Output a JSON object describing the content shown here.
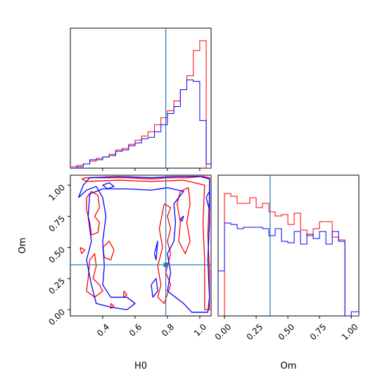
{
  "colors": {
    "red": "#ff0000",
    "blue": "#0000ff",
    "truth": "#1f77b4"
  },
  "chart_data": {
    "type": "corner",
    "parameters": [
      "H0",
      "Om"
    ],
    "truth": {
      "H0": 0.79,
      "Om": 0.36
    },
    "histograms": [
      {
        "parameter": "H0",
        "xlim": [
          0.2,
          1.07
        ],
        "ylim": [
          0,
          1.0
        ],
        "bin_edges": [
          0.2,
          0.24,
          0.28,
          0.32,
          0.36,
          0.4,
          0.44,
          0.48,
          0.52,
          0.56,
          0.6,
          0.64,
          0.68,
          0.72,
          0.76,
          0.8,
          0.84,
          0.88,
          0.92,
          0.96,
          1.0,
          1.04,
          1.07
        ],
        "series": [
          {
            "name_color": "red",
            "values": [
              0.01,
              0.02,
              0.03,
              0.05,
              0.07,
              0.08,
              0.1,
              0.13,
              0.14,
              0.17,
              0.2,
              0.23,
              0.26,
              0.31,
              0.36,
              0.41,
              0.48,
              0.56,
              0.66,
              0.84,
              0.91,
              0.0
            ]
          },
          {
            "name_color": "blue",
            "values": [
              0.0,
              0.01,
              0.03,
              0.06,
              0.06,
              0.08,
              0.09,
              0.12,
              0.13,
              0.16,
              0.18,
              0.21,
              0.22,
              0.26,
              0.31,
              0.39,
              0.44,
              0.56,
              0.63,
              0.62,
              0.34,
              0.03
            ]
          }
        ]
      },
      {
        "parameter": "Om",
        "xlim": [
          -0.05,
          1.06
        ],
        "ylim": [
          0,
          1.0
        ],
        "bin_edges": [
          -0.05,
          0.0,
          0.05,
          0.1,
          0.15,
          0.2,
          0.25,
          0.3,
          0.35,
          0.4,
          0.45,
          0.5,
          0.55,
          0.6,
          0.65,
          0.7,
          0.75,
          0.8,
          0.85,
          0.9,
          0.95,
          1.0,
          1.06
        ],
        "series": [
          {
            "name_color": "red",
            "values": [
              0.0,
              0.87,
              0.85,
              0.8,
              0.8,
              0.84,
              0.77,
              0.8,
              0.74,
              0.71,
              0.72,
              0.65,
              0.73,
              0.61,
              0.57,
              0.62,
              0.67,
              0.67,
              0.56,
              0.54,
              0.0,
              0.0
            ]
          },
          {
            "name_color": "blue",
            "values": [
              0.32,
              0.66,
              0.65,
              0.62,
              0.63,
              0.63,
              0.63,
              0.62,
              0.57,
              0.62,
              0.53,
              0.52,
              0.6,
              0.51,
              0.58,
              0.55,
              0.6,
              0.51,
              0.6,
              0.53,
              0.0,
              0.03
            ]
          }
        ]
      }
    ],
    "contour": {
      "x_parameter": "H0",
      "y_parameter": "Om",
      "xlim": [
        0.2,
        1.07
      ],
      "ylim": [
        -0.05,
        1.08
      ],
      "red_paths": [
        [
          [
            0.27,
            1.05
          ],
          [
            0.3,
            1.06
          ],
          [
            0.55,
            1.06
          ],
          [
            0.7,
            1.05
          ],
          [
            0.8,
            1.06
          ],
          [
            0.92,
            1.06
          ],
          [
            1.02,
            1.07
          ],
          [
            1.06,
            1.06
          ],
          [
            1.06,
            0.9
          ],
          [
            1.05,
            0.6
          ],
          [
            1.06,
            0.3
          ],
          [
            1.06,
            0.0
          ],
          [
            1.03,
            0.0
          ],
          [
            1.03,
            0.4
          ],
          [
            1.02,
            0.7
          ],
          [
            1.03,
            1.0
          ],
          [
            0.9,
            1.04
          ],
          [
            0.7,
            1.03
          ],
          [
            0.5,
            1.04
          ],
          [
            0.3,
            1.03
          ],
          [
            0.27,
            1.05
          ]
        ],
        [
          [
            0.3,
            0.9
          ],
          [
            0.33,
            0.95
          ],
          [
            0.37,
            0.92
          ],
          [
            0.38,
            0.82
          ],
          [
            0.35,
            0.75
          ],
          [
            0.38,
            0.7
          ],
          [
            0.37,
            0.62
          ],
          [
            0.33,
            0.6
          ],
          [
            0.32,
            0.7
          ],
          [
            0.3,
            0.8
          ],
          [
            0.3,
            0.9
          ]
        ],
        [
          [
            0.32,
            0.4
          ],
          [
            0.35,
            0.45
          ],
          [
            0.36,
            0.35
          ],
          [
            0.34,
            0.25
          ],
          [
            0.38,
            0.2
          ],
          [
            0.4,
            0.15
          ],
          [
            0.35,
            0.1
          ],
          [
            0.3,
            0.15
          ],
          [
            0.31,
            0.25
          ],
          [
            0.32,
            0.4
          ]
        ],
        [
          [
            0.4,
            0.5
          ],
          [
            0.44,
            0.55
          ],
          [
            0.47,
            0.48
          ],
          [
            0.45,
            0.4
          ],
          [
            0.41,
            0.42
          ],
          [
            0.4,
            0.5
          ]
        ],
        [
          [
            0.26,
            0.5
          ],
          [
            0.29,
            0.48
          ],
          [
            0.27,
            0.45
          ],
          [
            0.26,
            0.5
          ]
        ],
        [
          [
            0.78,
            0.85
          ],
          [
            0.82,
            0.82
          ],
          [
            0.8,
            0.75
          ],
          [
            0.82,
            0.65
          ],
          [
            0.8,
            0.55
          ],
          [
            0.82,
            0.45
          ],
          [
            0.79,
            0.3
          ],
          [
            0.82,
            0.2
          ],
          [
            0.78,
            0.05
          ],
          [
            0.74,
            0.1
          ],
          [
            0.76,
            0.2
          ],
          [
            0.74,
            0.35
          ],
          [
            0.77,
            0.5
          ],
          [
            0.75,
            0.65
          ],
          [
            0.78,
            0.85
          ]
        ],
        [
          [
            0.88,
            0.95
          ],
          [
            0.93,
            0.98
          ],
          [
            0.94,
            0.85
          ],
          [
            0.92,
            0.7
          ],
          [
            0.94,
            0.55
          ],
          [
            0.91,
            0.45
          ],
          [
            0.87,
            0.55
          ],
          [
            0.88,
            0.7
          ],
          [
            0.86,
            0.85
          ],
          [
            0.88,
            0.95
          ]
        ],
        [
          [
            0.53,
            0.15
          ],
          [
            0.55,
            0.12
          ],
          [
            0.53,
            0.1
          ],
          [
            0.53,
            0.15
          ]
        ],
        [
          [
            0.45,
            0.05
          ],
          [
            0.47,
            0.03
          ],
          [
            0.45,
            0.01
          ],
          [
            0.45,
            0.05
          ]
        ]
      ],
      "blue_paths": [
        [
          [
            0.25,
            0.9
          ],
          [
            0.28,
            1.0
          ],
          [
            0.32,
            1.06
          ],
          [
            0.5,
            1.07
          ],
          [
            0.7,
            1.06
          ],
          [
            0.85,
            1.07
          ],
          [
            1.0,
            1.07
          ],
          [
            1.06,
            1.05
          ],
          [
            1.06,
            0.7
          ],
          [
            1.05,
            0.4
          ],
          [
            1.06,
            0.1
          ],
          [
            1.05,
            -0.02
          ],
          [
            0.95,
            -0.02
          ],
          [
            0.9,
            0.05
          ],
          [
            0.85,
            0.1
          ],
          [
            0.8,
            0.15
          ],
          [
            0.82,
            0.3
          ],
          [
            0.8,
            0.45
          ],
          [
            0.84,
            0.55
          ],
          [
            0.85,
            0.7
          ],
          [
            0.84,
            0.85
          ],
          [
            0.9,
            0.95
          ],
          [
            0.8,
            0.98
          ],
          [
            0.7,
            0.96
          ],
          [
            0.55,
            0.97
          ],
          [
            0.4,
            0.97
          ],
          [
            0.32,
            0.93
          ],
          [
            0.31,
            0.75
          ],
          [
            0.33,
            0.55
          ],
          [
            0.3,
            0.4
          ],
          [
            0.33,
            0.2
          ],
          [
            0.36,
            0.05
          ],
          [
            0.45,
            0.02
          ],
          [
            0.55,
            0.0
          ],
          [
            0.6,
            0.05
          ],
          [
            0.55,
            0.1
          ],
          [
            0.45,
            0.1
          ],
          [
            0.4,
            0.2
          ],
          [
            0.41,
            0.35
          ],
          [
            0.4,
            0.55
          ],
          [
            0.42,
            0.75
          ],
          [
            0.4,
            0.9
          ],
          [
            0.36,
            0.99
          ],
          [
            0.3,
            0.96
          ],
          [
            0.25,
            0.9
          ]
        ],
        [
          [
            0.4,
            1.0
          ],
          [
            0.44,
            1.02
          ],
          [
            0.47,
            0.99
          ],
          [
            0.43,
            0.97
          ],
          [
            0.4,
            1.0
          ]
        ],
        [
          [
            0.7,
            0.2
          ],
          [
            0.73,
            0.25
          ],
          [
            0.74,
            0.15
          ],
          [
            0.71,
            0.1
          ],
          [
            0.7,
            0.2
          ]
        ],
        [
          [
            0.72,
            0.45
          ],
          [
            0.74,
            0.55
          ],
          [
            0.73,
            0.4
          ],
          [
            0.72,
            0.45
          ]
        ],
        [
          [
            0.88,
            0.73
          ],
          [
            0.9,
            0.75
          ],
          [
            0.89,
            0.71
          ],
          [
            0.88,
            0.73
          ]
        ],
        [
          [
            1.04,
            0.9
          ],
          [
            1.06,
            0.95
          ],
          [
            1.06,
            0.8
          ],
          [
            1.04,
            0.9
          ]
        ]
      ]
    },
    "panels": [
      {
        "id": "hist-H0",
        "ticks": [
          0.4,
          0.6,
          0.8,
          1.0
        ],
        "tick_labels": []
      },
      {
        "id": "contour-H0-Om",
        "x_ticks": [
          0.4,
          0.6,
          0.8,
          1.0
        ],
        "x_tick_labels": [
          "0.4",
          "0.6",
          "0.8",
          "1.0"
        ],
        "y_ticks": [
          0.0,
          0.25,
          0.5,
          0.75,
          1.0
        ],
        "y_tick_labels": [
          "0.00",
          "0.25",
          "0.50",
          "0.75",
          "1.00"
        ],
        "xlabel": "H0",
        "ylabel": "Om"
      },
      {
        "id": "hist-Om",
        "x_ticks": [
          0.0,
          0.25,
          0.5,
          0.75,
          1.0
        ],
        "x_tick_labels": [
          "0.00",
          "0.25",
          "0.50",
          "0.75",
          "1.00"
        ],
        "xlabel": "Om"
      }
    ]
  }
}
